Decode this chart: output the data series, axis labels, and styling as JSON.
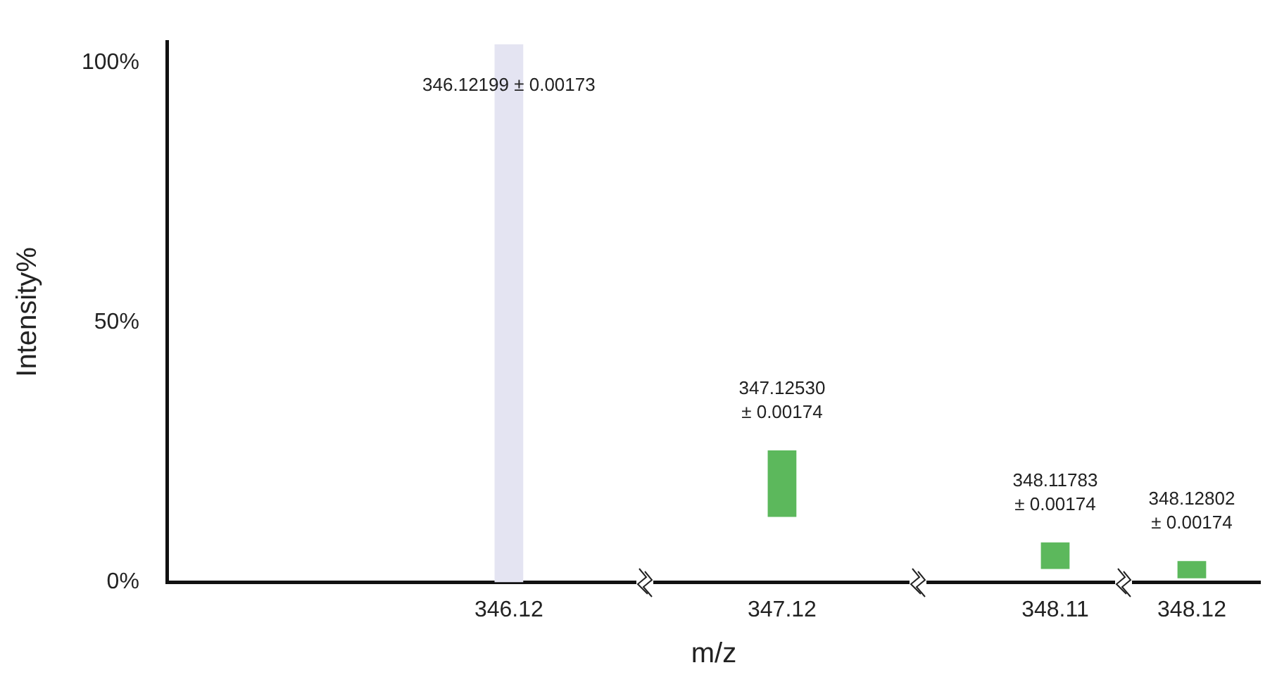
{
  "chart_data": {
    "type": "bar",
    "xlabel": "m/z",
    "ylabel": "Intensity%",
    "categories": [
      null,
      null,
      "346.12",
      null,
      "347.12",
      null,
      "348.11",
      "348.12"
    ],
    "base": [
      null,
      null,
      0,
      null,
      12.6,
      null,
      2.6,
      0.8
    ],
    "values": [
      null,
      null,
      103.5,
      null,
      12.8,
      null,
      5.1,
      3.3
    ],
    "colors": [
      "#e4e4f2",
      "#e4e4f2",
      "#e4e4f2",
      "#5cb85c",
      "#5cb85c",
      "#5cb85c",
      "#5cb85c",
      "#5cb85c"
    ],
    "ylim": [
      0,
      104
    ],
    "yticks": [
      {
        "value": 0,
        "label": "0%"
      },
      {
        "value": 50,
        "label": "50%"
      },
      {
        "value": 100,
        "label": "100%"
      }
    ],
    "grid": false,
    "legend": false,
    "annotations": [
      "346.12199 ± 0.00173",
      "347.12530\n± 0.00174",
      "348.11783\n± 0.00174",
      "348.12802\n± 0.00174"
    ]
  }
}
